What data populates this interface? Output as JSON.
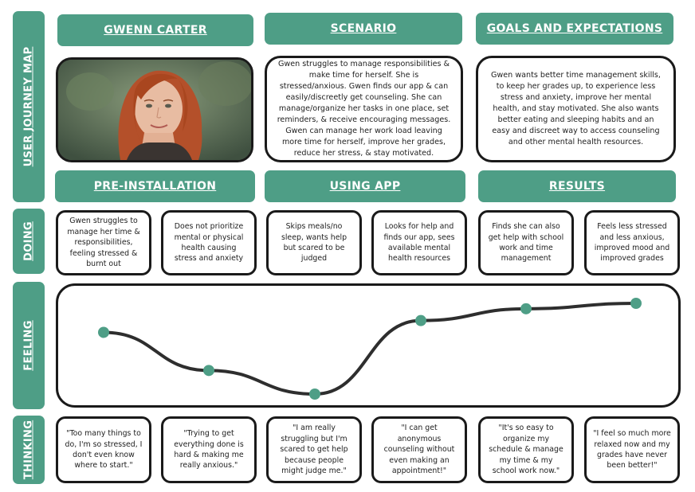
{
  "side_labels": {
    "journey": "USER JOURNEY MAP",
    "doing": "DOING",
    "feeling": "FEELING",
    "thinking": "THINKING"
  },
  "persona": {
    "name": "GWENN CARTER",
    "photo_icon": "portrait-photo"
  },
  "scenario": {
    "title": "SCENARIO",
    "text": "Gwen struggles to manage responsibilities & make time for herself. She is stressed/anxious. Gwen finds our app & can easily/discreetly get counseling. She can manage/organize her tasks in one place, set reminders, & receive encouraging messages. Gwen can manage her work load leaving more time for herself, improve her grades, reduce her stress, & stay motivated."
  },
  "goals": {
    "title": "GOALS AND EXPECTATIONS",
    "text": "Gwen wants better time management skills, to keep her grades up, to experience less stress and anxiety, improve her mental health, and stay motivated. She also wants better eating and sleeping habits and an easy and discreet way to access counseling and other mental health resources."
  },
  "phases": [
    "PRE-INSTALLATION",
    "USING APP",
    "RESULTS"
  ],
  "doing": [
    "Gwen struggles to manage her time & responsibilities, feeling stressed & burnt out",
    "Does not prioritize mental or physical health causing stress and anxiety",
    "Skips meals/no sleep, wants help but scared to be judged",
    "Looks for help and finds our app, sees available mental health resources",
    "Finds she can also get help with school work and time management",
    "Feels less stressed and less anxious, improved mood and improved grades"
  ],
  "thinking": [
    "\"Too many things to do, I'm so stressed, I don't even know where to start.\"",
    "\"Trying to get everything done is hard & making me really anxious.\"",
    "\"I am really struggling but I'm scared to get help because people might judge me.\"",
    "\"I can get anonymous counseling without even making an appointment!\"",
    "\"It's so easy to organize my schedule & manage my time & my school work now.\"",
    "\"I feel so much more relaxed now and my grades have never been better!\""
  ],
  "chart_data": {
    "type": "line",
    "x": [
      1,
      2,
      3,
      4,
      5,
      6
    ],
    "values": [
      0.68,
      0.26,
      0.0,
      0.81,
      0.94,
      1.0
    ],
    "ylim": [
      0,
      1
    ],
    "title": "",
    "xlabel": "",
    "ylabel": "",
    "colors": {
      "line": "#2e2e2e",
      "point": "#4e9e86"
    }
  },
  "colors": {
    "accent": "#4e9e86",
    "border": "#1a1a1a"
  }
}
